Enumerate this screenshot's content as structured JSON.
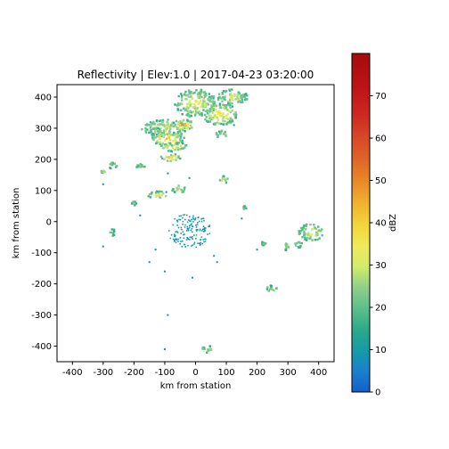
{
  "chart_data": {
    "type": "heatmap",
    "title": "Reflectivity | Elev:1.0 | 2017-04-23 03:20:00",
    "xlabel": "km from station",
    "ylabel": "km from station",
    "xlim": [
      -450,
      450
    ],
    "ylim": [
      -450,
      440
    ],
    "xticks": [
      -400,
      -300,
      -200,
      -100,
      0,
      100,
      200,
      300,
      400
    ],
    "yticks": [
      -400,
      -300,
      -200,
      -100,
      0,
      100,
      200,
      300,
      400
    ],
    "grid": false,
    "colorbar": {
      "label": "dBZ",
      "range": [
        0,
        80
      ],
      "ticks": [
        0,
        10,
        20,
        30,
        40,
        50,
        60,
        70
      ]
    },
    "echo_regions": [
      {
        "x": 0,
        "y": 380,
        "rx": 70,
        "ry": 45,
        "dbz": 30
      },
      {
        "x": -100,
        "y": 300,
        "rx": 75,
        "ry": 28,
        "dbz": 28
      },
      {
        "x": -90,
        "y": 265,
        "rx": 55,
        "ry": 22,
        "dbz": 38
      },
      {
        "x": -70,
        "y": 240,
        "rx": 45,
        "ry": 15,
        "dbz": 30
      },
      {
        "x": -80,
        "y": 205,
        "rx": 35,
        "ry": 12,
        "dbz": 36
      },
      {
        "x": 80,
        "y": 345,
        "rx": 60,
        "ry": 35,
        "dbz": 32
      },
      {
        "x": 120,
        "y": 400,
        "rx": 50,
        "ry": 25,
        "dbz": 28
      },
      {
        "x": 90,
        "y": 280,
        "rx": 25,
        "ry": 12,
        "dbz": 24
      },
      {
        "x": -40,
        "y": 310,
        "rx": 35,
        "ry": 18,
        "dbz": 42
      },
      {
        "x": -130,
        "y": 290,
        "rx": 20,
        "ry": 12,
        "dbz": 22
      },
      {
        "x": -180,
        "y": 180,
        "rx": 20,
        "ry": 8,
        "dbz": 22
      },
      {
        "x": -270,
        "y": 180,
        "rx": 15,
        "ry": 10,
        "dbz": 24
      },
      {
        "x": -300,
        "y": 160,
        "rx": 6,
        "ry": 5,
        "dbz": 28
      },
      {
        "x": -120,
        "y": 85,
        "rx": 35,
        "ry": 12,
        "dbz": 30
      },
      {
        "x": -55,
        "y": 105,
        "rx": 22,
        "ry": 14,
        "dbz": 24
      },
      {
        "x": -200,
        "y": 60,
        "rx": 8,
        "ry": 8,
        "dbz": 24
      },
      {
        "x": 90,
        "y": 135,
        "rx": 18,
        "ry": 12,
        "dbz": 26
      },
      {
        "x": 160,
        "y": 45,
        "rx": 6,
        "ry": 5,
        "dbz": 22
      },
      {
        "x": -20,
        "y": -30,
        "rx": 70,
        "ry": 55,
        "dbz": 10
      },
      {
        "x": -270,
        "y": -35,
        "rx": 8,
        "ry": 12,
        "dbz": 22
      },
      {
        "x": 375,
        "y": -35,
        "rx": 40,
        "ry": 28,
        "dbz": 30
      },
      {
        "x": 295,
        "y": -80,
        "rx": 8,
        "ry": 12,
        "dbz": 24
      },
      {
        "x": 335,
        "y": -75,
        "rx": 12,
        "ry": 10,
        "dbz": 24
      },
      {
        "x": 250,
        "y": -215,
        "rx": 18,
        "ry": 10,
        "dbz": 22
      },
      {
        "x": 40,
        "y": -410,
        "rx": 20,
        "ry": 12,
        "dbz": 22
      },
      {
        "x": 220,
        "y": -70,
        "rx": 8,
        "ry": 6,
        "dbz": 20
      }
    ],
    "scatter_speckle": [
      {
        "x": -95,
        "y": 95
      },
      {
        "x": -90,
        "y": 155
      },
      {
        "x": -300,
        "y": 120
      },
      {
        "x": -300,
        "y": -80
      },
      {
        "x": -150,
        "y": -130
      },
      {
        "x": -100,
        "y": -160
      },
      {
        "x": -10,
        "y": -180
      },
      {
        "x": 70,
        "y": -130
      },
      {
        "x": 60,
        "y": -110
      },
      {
        "x": -20,
        "y": 140
      },
      {
        "x": -130,
        "y": -90
      },
      {
        "x": 125,
        "y": 310
      },
      {
        "x": -180,
        "y": 20
      },
      {
        "x": 200,
        "y": -90
      },
      {
        "x": 150,
        "y": 10
      },
      {
        "x": -90,
        "y": -300
      },
      {
        "x": -100,
        "y": -410
      }
    ]
  }
}
